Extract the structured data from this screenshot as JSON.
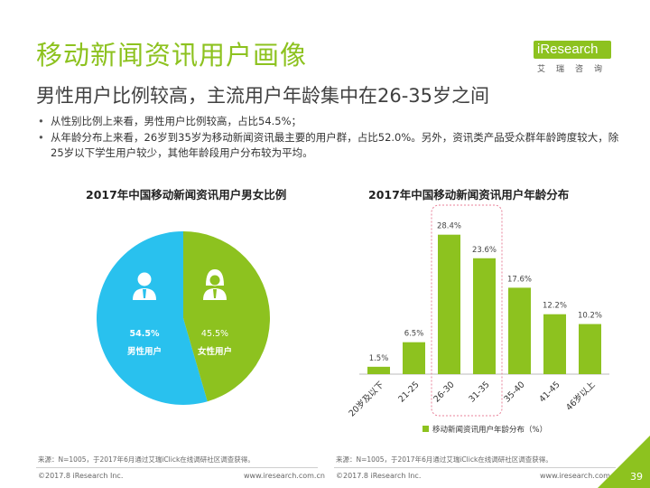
{
  "page": {
    "title": "移动新闻资讯用户画像",
    "subtitle": "男性用户比例较高，主流用户年龄集中在26-35岁之间",
    "bullets": [
      "从性别比例上来看，男性用户比例较高，占比54.5%；",
      "从年龄分布上来看，26岁到35岁为移动新闻资讯最主要的用户群，占比52.0%。另外，资讯类产品受众群年龄跨度较大，除25岁以下学生用户较少，其他年龄段用户分布较为平均。"
    ],
    "logo": {
      "text": "iResearch",
      "sub": "艾瑞咨询"
    },
    "footer": {
      "source": "来源：N=1005，于2017年6月通过艾瑞iClick在线调研社区调查获得。",
      "copyright": "©2017.8 iResearch Inc.",
      "website": "www.iresearch.com.cn",
      "page_number": "39"
    }
  },
  "colors": {
    "accent_green": "#8dc21f",
    "male_blue": "#29c1ee",
    "highlight_border": "#e8829a",
    "text_dark": "#333333"
  },
  "chart_data": [
    {
      "type": "pie",
      "title": "2017年中国移动新闻资讯用户男女比例",
      "slices": [
        {
          "label": "男性用户",
          "value": 54.5,
          "value_label": "54.5%",
          "color": "#29c1ee",
          "icon": "male-user-icon"
        },
        {
          "label": "女性用户",
          "value": 45.5,
          "value_label": "45.5%",
          "color": "#8dc21f",
          "icon": "female-user-icon"
        }
      ]
    },
    {
      "type": "bar",
      "title": "2017年中国移动新闻资讯用户年龄分布",
      "categories": [
        "20岁及以下",
        "21-25",
        "26-30",
        "31-35",
        "35-40",
        "41-45",
        "46岁以上"
      ],
      "series": [
        {
          "name": "移动新闻资讯用户年龄分布（%）",
          "values": [
            1.5,
            6.5,
            28.4,
            23.6,
            17.6,
            12.2,
            10.2
          ],
          "color": "#8dc21f"
        }
      ],
      "value_labels": [
        "1.5%",
        "6.5%",
        "28.4%",
        "23.6%",
        "17.6%",
        "12.2%",
        "10.2%"
      ],
      "ylim": [
        0,
        30
      ],
      "highlighted_categories": [
        "26-30",
        "31-35"
      ],
      "legend_position": "bottom",
      "grid": false
    }
  ]
}
